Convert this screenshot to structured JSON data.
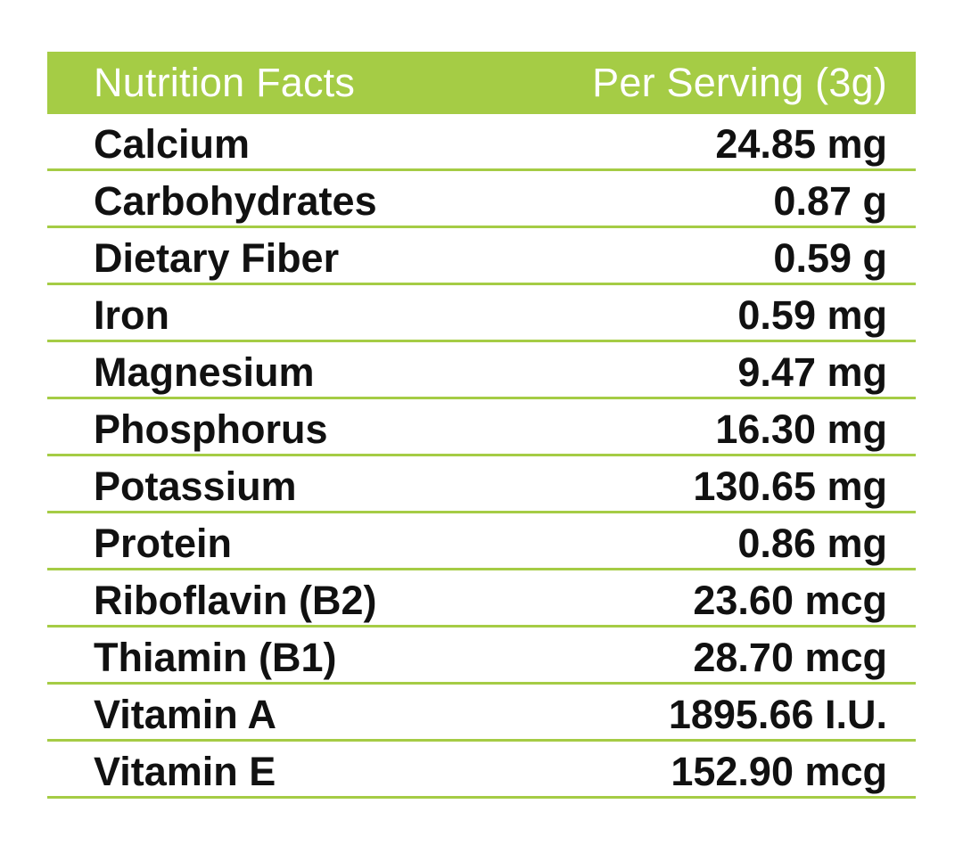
{
  "header": {
    "left": "Nutrition Facts",
    "right": "Per Serving (3g)"
  },
  "rows": [
    {
      "name": "Calcium",
      "value": "24.85 mg"
    },
    {
      "name": "Carbohydrates",
      "value": "0.87 g"
    },
    {
      "name": "Dietary Fiber",
      "value": "0.59 g"
    },
    {
      "name": "Iron",
      "value": "0.59 mg"
    },
    {
      "name": "Magnesium",
      "value": "9.47 mg"
    },
    {
      "name": "Phosphorus",
      "value": "16.30 mg"
    },
    {
      "name": "Potassium",
      "value": "130.65 mg"
    },
    {
      "name": "Protein",
      "value": "0.86 mg"
    },
    {
      "name": "Riboflavin (B2)",
      "value": "23.60 mcg"
    },
    {
      "name": "Thiamin (B1)",
      "value": "28.70 mcg"
    },
    {
      "name": "Vitamin A",
      "value": "1895.66 I.U."
    },
    {
      "name": "Vitamin E",
      "value": "152.90 mcg"
    }
  ],
  "colors": {
    "accent": "#a5cc45",
    "text": "#111111",
    "header_text": "#ffffff"
  }
}
